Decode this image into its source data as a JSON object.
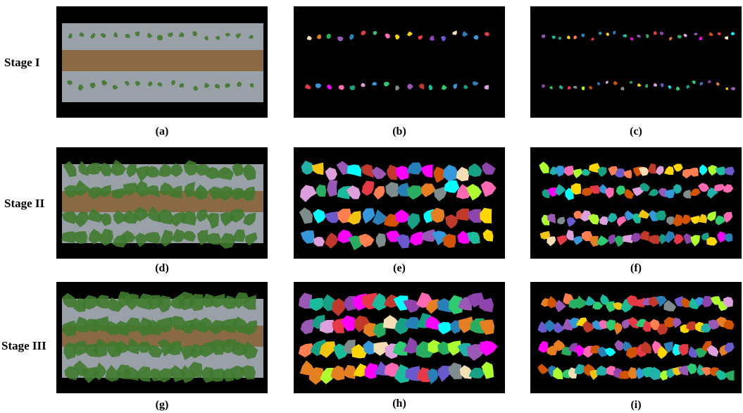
{
  "figure": {
    "rows": [
      {
        "stage": "Stage I",
        "panels": [
          {
            "caption": "(a)",
            "kind": "photo",
            "growth": 1
          },
          {
            "caption": "(b)",
            "kind": "segmentation",
            "growth": 1
          },
          {
            "caption": "(c)",
            "kind": "segmentation",
            "growth": 1
          }
        ]
      },
      {
        "stage": "Stage II",
        "panels": [
          {
            "caption": "(d)",
            "kind": "photo",
            "growth": 2
          },
          {
            "caption": "(e)",
            "kind": "segmentation",
            "growth": 2
          },
          {
            "caption": "(f)",
            "kind": "segmentation",
            "growth": 2
          }
        ]
      },
      {
        "stage": "Stage III",
        "panels": [
          {
            "caption": "(g)",
            "kind": "photo",
            "growth": 3
          },
          {
            "caption": "(h)",
            "kind": "segmentation",
            "growth": 3
          },
          {
            "caption": "(i)",
            "kind": "segmentation",
            "growth": 3
          }
        ]
      }
    ],
    "colors": {
      "background": "#000000",
      "soil": "#8a6a45",
      "mulch": "#9aa0a8",
      "leaf": "#3f7a2e",
      "segment_palette": [
        "#e63946",
        "#f1c40f",
        "#2ecc71",
        "#3498db",
        "#9b59b6",
        "#e67e22",
        "#1abc9c",
        "#ff69b4",
        "#f5deb3",
        "#c0392b",
        "#8e44ad",
        "#27ae60",
        "#d35400",
        "#16a085",
        "#2980b9",
        "#7f8c8d",
        "#ff00ff",
        "#00ffff",
        "#ffd700",
        "#adff2f",
        "#ff7f50",
        "#6a5acd",
        "#20b2aa",
        "#dda0dd"
      ]
    }
  }
}
